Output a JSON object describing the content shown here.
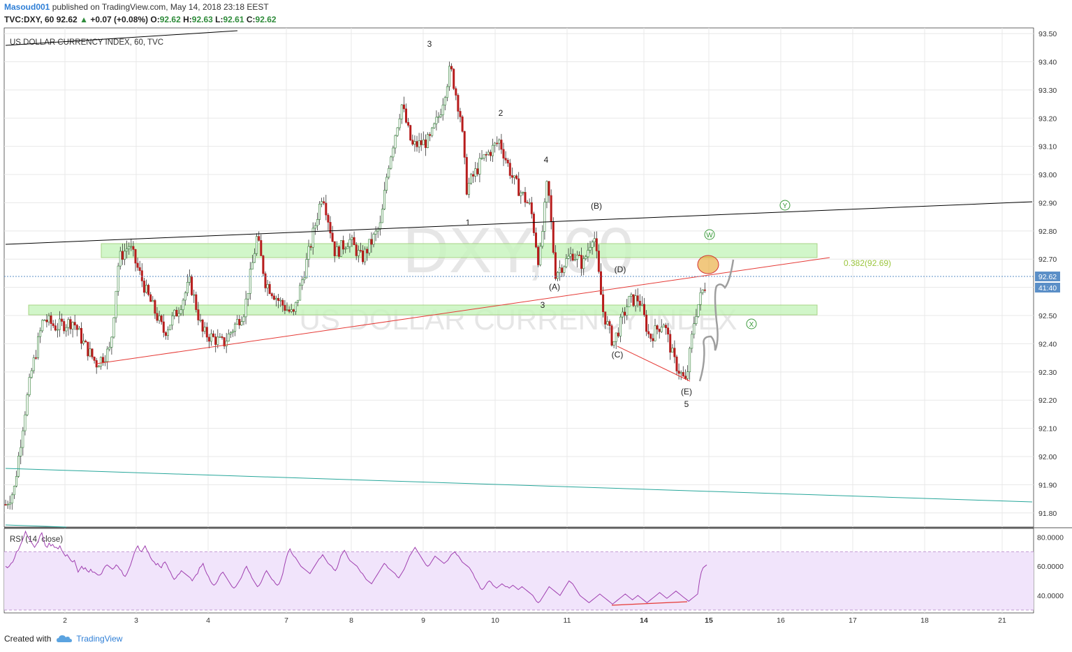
{
  "header": {
    "author": "Masoud001",
    "published_text": "published on TradingView.com, May 14, 2018 23:18 EEST",
    "symbol_line": "TVC:DXY, 60",
    "last": "92.62",
    "change": "+0.07 (+0.08%)",
    "o_label": "O:",
    "o_val": "92.62",
    "h_label": "H:",
    "h_val": "92.63",
    "l_label": "L:",
    "l_val": "92.61",
    "c_label": "C:",
    "c_val": "92.62"
  },
  "footer": {
    "created_with": "Created with",
    "brand": "TradingView"
  },
  "chart_data": {
    "type": "candlestick",
    "title": "US DOLLAR CURRENCY INDEX, 60, TVC",
    "watermark_symbol": "DXY, 60",
    "watermark_name": "US DOLLAR CURRENCY INDEX",
    "ylim": [
      91.75,
      93.52
    ],
    "price_ticks": [
      "93.50",
      "93.40",
      "93.30",
      "93.20",
      "93.10",
      "93.00",
      "92.90",
      "92.80",
      "92.70",
      "92.60",
      "92.50",
      "92.40",
      "92.30",
      "92.20",
      "92.10",
      "92.00",
      "91.90",
      "91.80"
    ],
    "x_ticks": [
      "2",
      "3",
      "4",
      "7",
      "8",
      "9",
      "10",
      "11",
      "14",
      "15",
      "16",
      "17",
      "18",
      "21"
    ],
    "bold_x_ticks": [
      "14",
      "15"
    ],
    "last_price_label": "92.62",
    "countdown_label": "41:40",
    "fib_label": "0.382(92.69)",
    "wave_labels": [
      "3",
      "2",
      "4",
      "1",
      "3",
      "(B)",
      "(A)",
      "(D)",
      "(C)",
      "(E)",
      "5"
    ],
    "circle_labels": [
      "W",
      "X",
      "Y"
    ],
    "colors": {
      "up": "#2e7d32",
      "down": "#b71c1c",
      "zone": "#c9f5c0",
      "zone_border": "#9acd72",
      "trend_black": "#000000",
      "trend_red": "#e53935",
      "trend_teal": "#26a69a",
      "rsi": "#a040b0",
      "rsi_band": "#f1e4fb",
      "last_price": "#5b8fc7",
      "fib": "#9bc53d",
      "ellipse": "#e8a42a",
      "circle_letter": "#3a9a3a"
    },
    "rsi": {
      "label": "RSI (14, close)",
      "ylim": [
        28,
        86
      ],
      "ticks": [
        "80.0000",
        "60.0000",
        "40.0000"
      ],
      "band": [
        30,
        70
      ],
      "values": [
        60,
        59,
        60,
        62,
        63,
        66,
        70,
        71,
        74,
        77,
        80,
        84,
        81,
        79,
        77,
        75,
        73,
        75,
        77,
        81,
        83,
        78,
        74,
        73,
        76,
        74,
        75,
        73,
        73,
        72,
        74,
        71,
        69,
        67,
        68,
        66,
        64,
        63,
        64,
        60,
        56,
        58,
        60,
        58,
        59,
        57,
        56,
        58,
        56,
        56,
        55,
        54,
        54,
        55,
        58,
        60,
        61,
        60,
        59,
        58,
        59,
        61,
        60,
        58,
        57,
        54,
        53,
        55,
        58,
        61,
        65,
        69,
        72,
        74,
        71,
        70,
        72,
        74,
        71,
        69,
        66,
        64,
        63,
        61,
        62,
        60,
        59,
        62,
        63,
        61,
        58,
        56,
        53,
        51,
        52,
        54,
        55,
        57,
        56,
        55,
        54,
        53,
        52,
        50,
        52,
        54,
        55,
        59,
        60,
        62,
        58,
        55,
        53,
        50,
        48,
        47,
        48,
        50,
        53,
        55,
        56,
        54,
        52,
        50,
        48,
        46,
        45,
        46,
        48,
        50,
        52,
        55,
        58,
        60,
        57,
        55,
        52,
        50,
        48,
        46,
        47,
        49,
        52,
        55,
        57,
        55,
        53,
        51,
        50,
        48,
        47,
        48,
        51,
        55,
        61,
        66,
        70,
        72,
        69,
        67,
        66,
        64,
        62,
        60,
        59,
        58,
        57,
        56,
        55,
        57,
        59,
        61,
        63,
        65,
        66,
        68,
        66,
        64,
        62,
        61,
        60,
        58,
        57,
        59,
        63,
        67,
        69,
        71,
        69,
        66,
        64,
        63,
        62,
        61,
        60,
        58,
        56,
        55,
        53,
        51,
        50,
        49,
        48,
        50,
        52,
        54,
        56,
        58,
        60,
        62,
        61,
        59,
        58,
        57,
        56,
        55,
        53,
        52,
        54,
        56,
        58,
        61,
        64,
        67,
        69,
        71,
        73,
        71,
        69,
        67,
        65,
        63,
        61,
        60,
        61,
        63,
        65,
        67,
        66,
        65,
        64,
        63,
        62,
        63,
        64,
        66,
        68,
        69,
        70,
        68,
        67,
        65,
        63,
        62,
        61,
        60,
        59,
        57,
        55,
        52,
        50,
        48,
        45,
        44,
        45,
        47,
        49,
        50,
        49,
        47,
        46,
        45,
        46,
        47,
        48,
        47,
        46,
        46,
        45,
        46,
        47,
        46,
        45,
        44,
        45,
        46,
        45,
        44,
        43,
        42,
        41,
        40,
        38,
        36,
        35,
        36,
        38,
        40,
        42,
        44,
        46,
        45,
        44,
        43,
        42,
        41,
        40,
        42,
        44,
        46,
        48,
        50,
        49,
        48,
        46,
        44,
        42,
        40,
        39,
        38,
        37,
        36,
        35,
        36,
        37,
        38,
        39,
        40,
        41,
        40,
        39,
        38,
        37,
        36,
        35,
        34,
        35,
        36,
        37,
        38,
        39,
        40,
        41,
        40,
        39,
        38,
        37,
        38,
        39,
        40,
        39,
        38,
        37,
        36,
        35,
        36,
        37,
        38,
        39,
        40,
        41,
        42,
        41,
        40,
        39,
        38,
        39,
        40,
        41,
        42,
        43,
        42,
        41,
        40,
        39,
        38,
        37,
        36,
        37,
        38,
        39,
        40,
        41,
        50,
        56,
        59,
        60,
        61
      ]
    }
  }
}
